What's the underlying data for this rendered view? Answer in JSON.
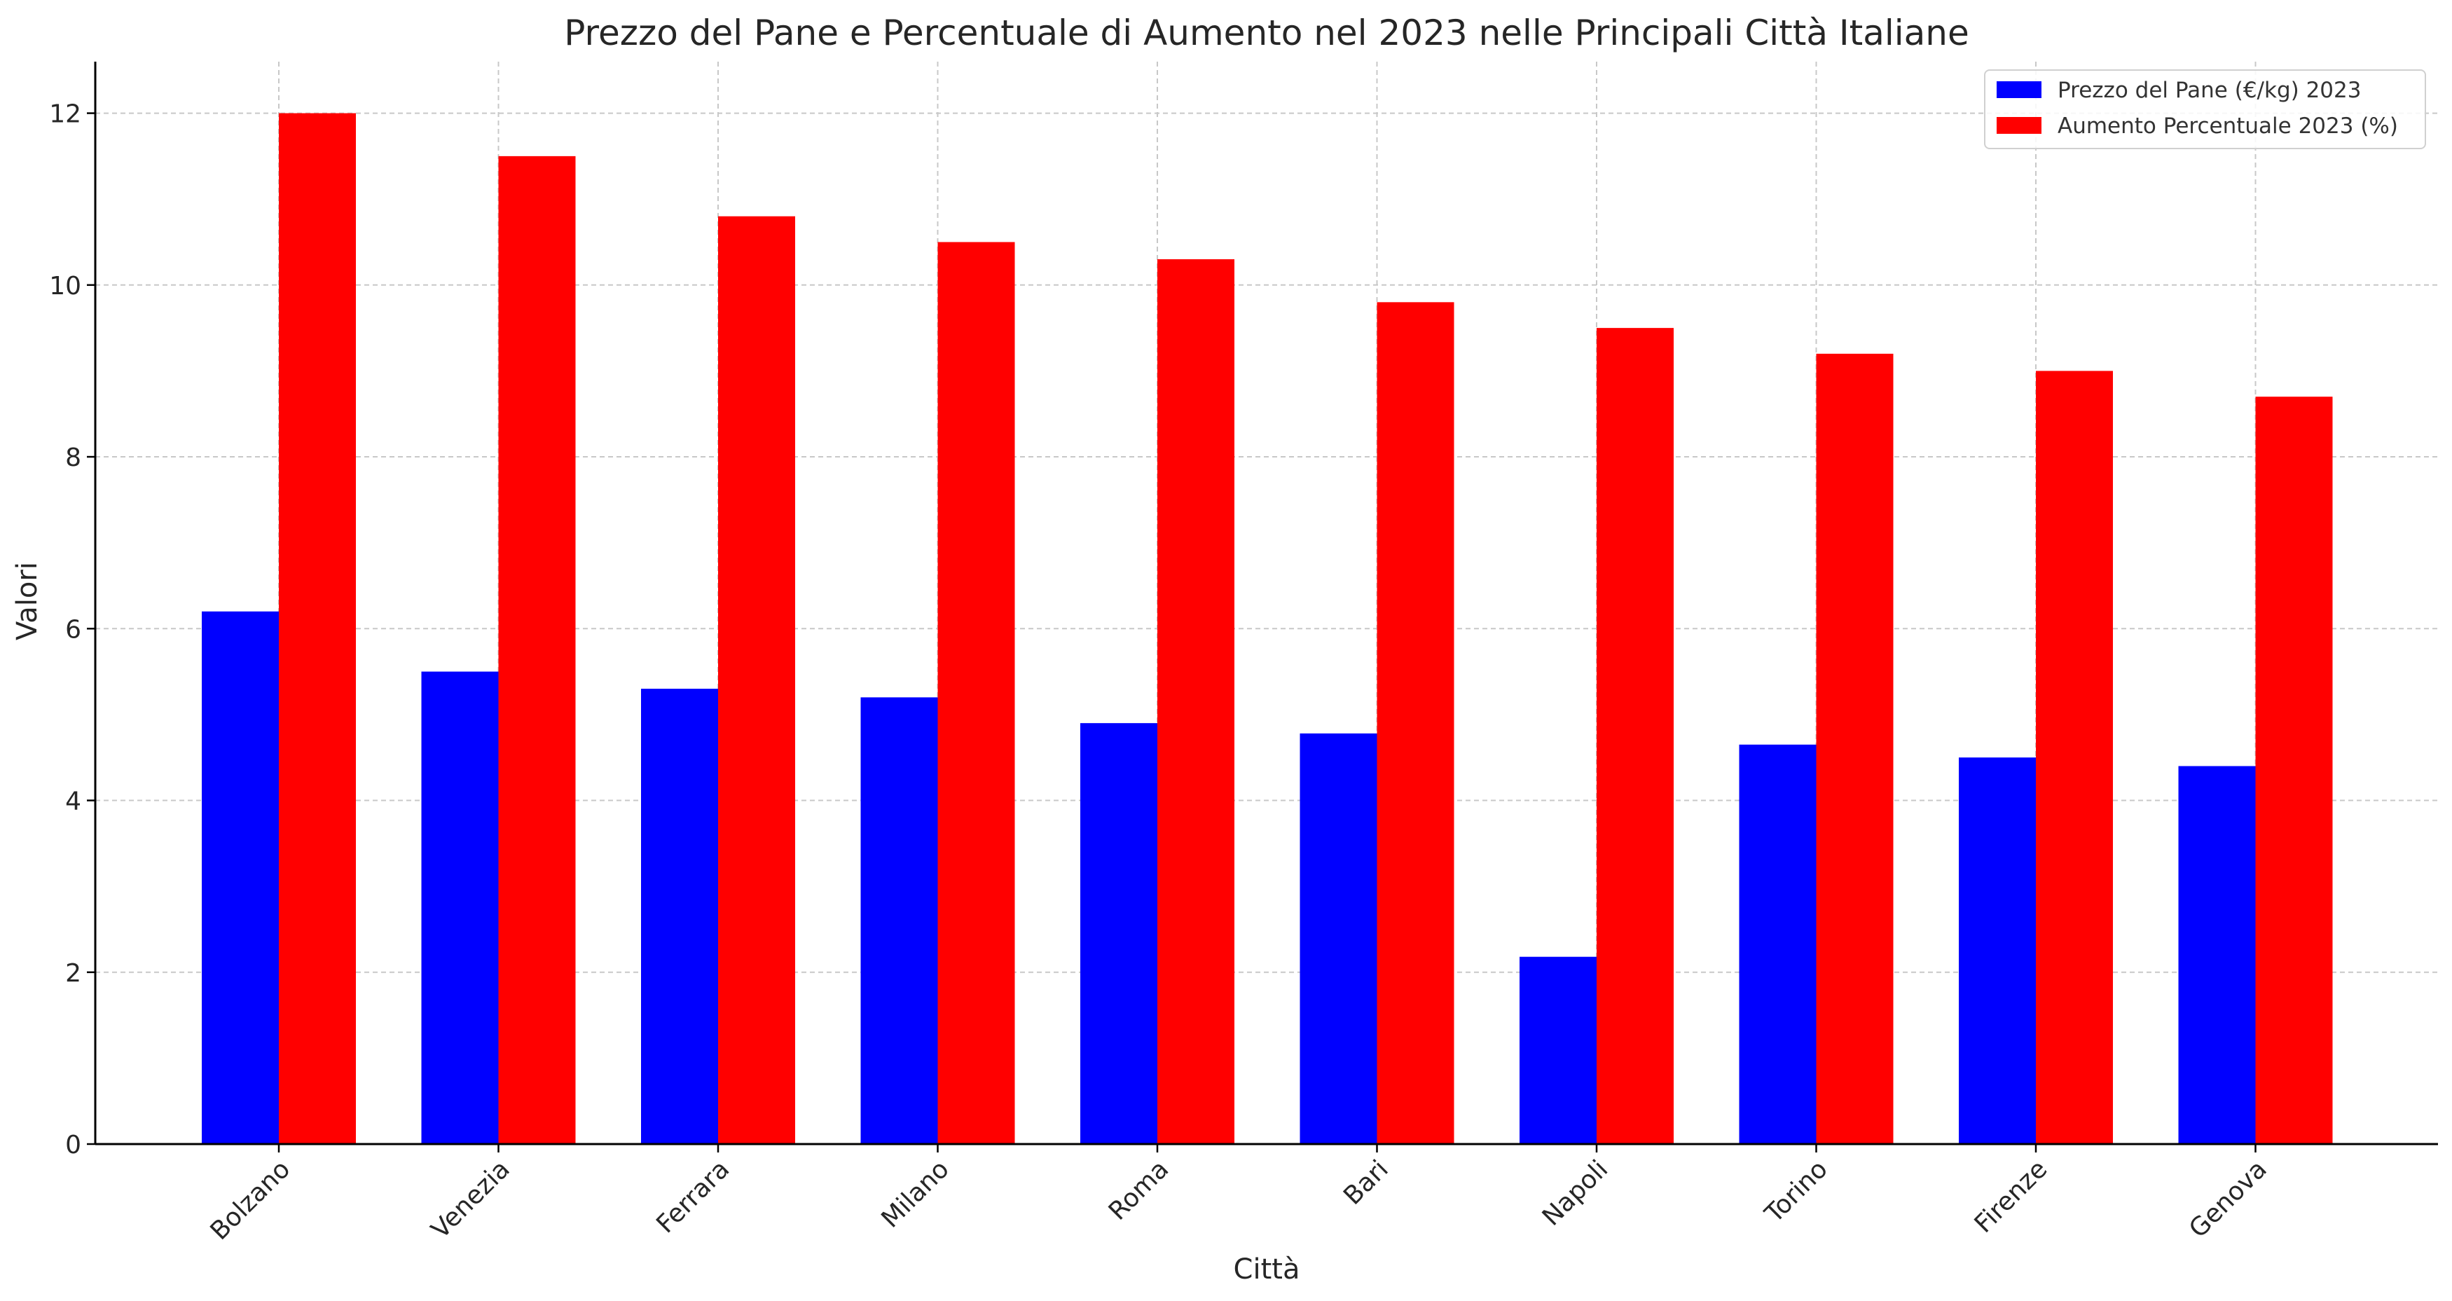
{
  "chart_data": {
    "type": "bar",
    "title": "Prezzo del Pane e Percentuale di Aumento nel 2023 nelle Principali Città Italiane",
    "xlabel": "Città",
    "ylabel": "Valori",
    "ylim": [
      0,
      12.6
    ],
    "yticks": [
      0,
      2,
      4,
      6,
      8,
      10,
      12
    ],
    "grid": true,
    "legend_position": "top-right",
    "categories": [
      "Bolzano",
      "Venezia",
      "Ferrara",
      "Milano",
      "Roma",
      "Bari",
      "Napoli",
      "Torino",
      "Firenze",
      "Genova"
    ],
    "series": [
      {
        "name": "Prezzo del Pane (€/kg) 2023",
        "color": "#0000ff",
        "values": [
          6.2,
          5.5,
          5.3,
          5.2,
          4.9,
          4.78,
          2.18,
          4.65,
          4.5,
          4.4
        ]
      },
      {
        "name": "Aumento Percentuale 2023 (%)",
        "color": "#ff0000",
        "values": [
          12.0,
          11.5,
          10.8,
          10.5,
          10.3,
          9.8,
          9.5,
          9.2,
          9.0,
          8.7
        ]
      }
    ]
  }
}
